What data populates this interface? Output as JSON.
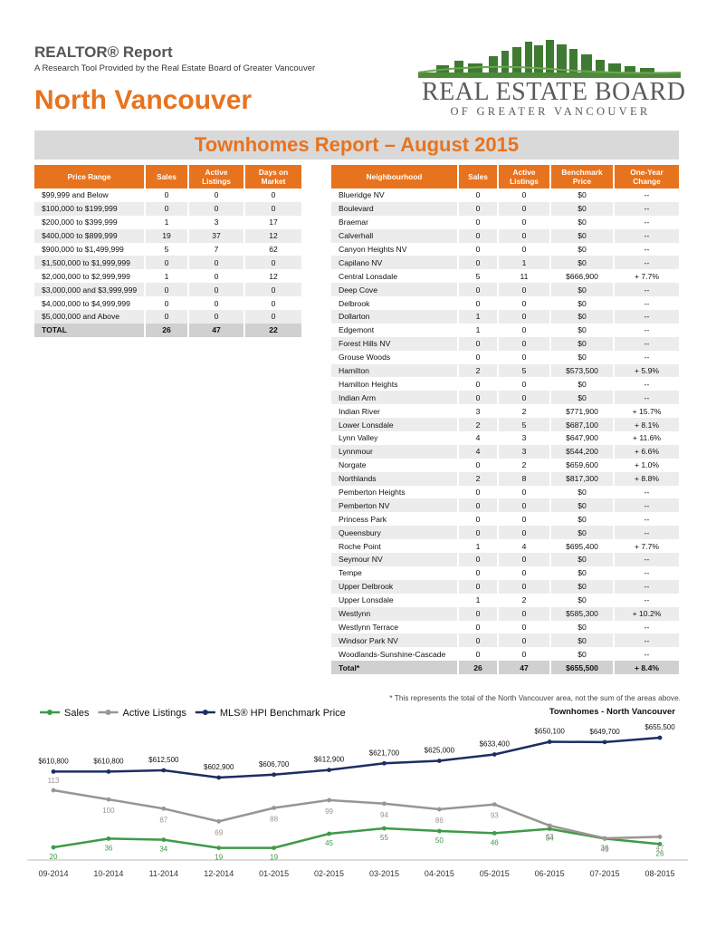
{
  "header": {
    "report_title": "REALTOR® Report",
    "subtitle": "A Research Tool Provided by the Real Estate Board of Greater Vancouver",
    "region": "North Vancouver",
    "logo_name": "REAL ESTATE BOARD",
    "logo_tagline": "OF GREATER VANCOUVER"
  },
  "banner": {
    "title": "Townhomes Report – August 2015"
  },
  "colors": {
    "orange": "#e8731e",
    "green": "#3f9a48",
    "gray": "#9a9590",
    "navy": "#1c2e63"
  },
  "price_table": {
    "headers": [
      "Price Range",
      "Sales",
      "Active Listings",
      "Days on Market"
    ],
    "rows": [
      [
        "$99,999 and Below",
        "0",
        "0",
        "0"
      ],
      [
        "$100,000 to $199,999",
        "0",
        "0",
        "0"
      ],
      [
        "$200,000 to $399,999",
        "1",
        "3",
        "17"
      ],
      [
        "$400,000 to $899,999",
        "19",
        "37",
        "12"
      ],
      [
        "$900,000 to $1,499,999",
        "5",
        "7",
        "62"
      ],
      [
        "$1,500,000 to $1,999,999",
        "0",
        "0",
        "0"
      ],
      [
        "$2,000,000 to $2,999,999",
        "1",
        "0",
        "12"
      ],
      [
        "$3,000,000 and $3,999,999",
        "0",
        "0",
        "0"
      ],
      [
        "$4,000,000 to $4,999,999",
        "0",
        "0",
        "0"
      ],
      [
        "$5,000,000 and Above",
        "0",
        "0",
        "0"
      ]
    ],
    "total": [
      "TOTAL",
      "26",
      "47",
      "22"
    ]
  },
  "neighbourhood_table": {
    "headers": [
      "Neighbourhood",
      "Sales",
      "Active Listings",
      "Benchmark Price",
      "One-Year Change"
    ],
    "rows": [
      [
        "Blueridge NV",
        "0",
        "0",
        "$0",
        "--"
      ],
      [
        "Boulevard",
        "0",
        "0",
        "$0",
        "--"
      ],
      [
        "Braemar",
        "0",
        "0",
        "$0",
        "--"
      ],
      [
        "Calverhall",
        "0",
        "0",
        "$0",
        "--"
      ],
      [
        "Canyon Heights NV",
        "0",
        "0",
        "$0",
        "--"
      ],
      [
        "Capilano NV",
        "0",
        "1",
        "$0",
        "--"
      ],
      [
        "Central Lonsdale",
        "5",
        "11",
        "$666,900",
        "+ 7.7%"
      ],
      [
        "Deep Cove",
        "0",
        "0",
        "$0",
        "--"
      ],
      [
        "Delbrook",
        "0",
        "0",
        "$0",
        "--"
      ],
      [
        "Dollarton",
        "1",
        "0",
        "$0",
        "--"
      ],
      [
        "Edgemont",
        "1",
        "0",
        "$0",
        "--"
      ],
      [
        "Forest Hills NV",
        "0",
        "0",
        "$0",
        "--"
      ],
      [
        "Grouse Woods",
        "0",
        "0",
        "$0",
        "--"
      ],
      [
        "Hamilton",
        "2",
        "5",
        "$573,500",
        "+ 5.9%"
      ],
      [
        "Hamilton Heights",
        "0",
        "0",
        "$0",
        "--"
      ],
      [
        "Indian Arm",
        "0",
        "0",
        "$0",
        "--"
      ],
      [
        "Indian River",
        "3",
        "2",
        "$771,900",
        "+ 15.7%"
      ],
      [
        "Lower Lonsdale",
        "2",
        "5",
        "$687,100",
        "+ 8.1%"
      ],
      [
        "Lynn Valley",
        "4",
        "3",
        "$647,900",
        "+ 11.6%"
      ],
      [
        "Lynnmour",
        "4",
        "3",
        "$544,200",
        "+ 6.6%"
      ],
      [
        "Norgate",
        "0",
        "2",
        "$659,600",
        "+ 1.0%"
      ],
      [
        "Northlands",
        "2",
        "8",
        "$817,300",
        "+ 8.8%"
      ],
      [
        "Pemberton Heights",
        "0",
        "0",
        "$0",
        "--"
      ],
      [
        "Pemberton NV",
        "0",
        "0",
        "$0",
        "--"
      ],
      [
        "Princess Park",
        "0",
        "0",
        "$0",
        "--"
      ],
      [
        "Queensbury",
        "0",
        "0",
        "$0",
        "--"
      ],
      [
        "Roche Point",
        "1",
        "4",
        "$695,400",
        "+ 7.7%"
      ],
      [
        "Seymour NV",
        "0",
        "0",
        "$0",
        "--"
      ],
      [
        "Tempe",
        "0",
        "0",
        "$0",
        "--"
      ],
      [
        "Upper Delbrook",
        "0",
        "0",
        "$0",
        "--"
      ],
      [
        "Upper Lonsdale",
        "1",
        "2",
        "$0",
        "--"
      ],
      [
        "Westlynn",
        "0",
        "0",
        "$585,300",
        "+ 10.2%"
      ],
      [
        "Westlynn Terrace",
        "0",
        "0",
        "$0",
        "--"
      ],
      [
        "Windsor Park NV",
        "0",
        "0",
        "$0",
        "--"
      ],
      [
        "Woodlands-Sunshine-Cascade",
        "0",
        "0",
        "$0",
        "--"
      ]
    ],
    "total": [
      "Total*",
      "26",
      "47",
      "$655,500",
      "+ 8.4%"
    ]
  },
  "footnote": "* This represents the total of the North Vancouver area, not the sum of the areas above.",
  "chart_data": {
    "type": "line",
    "title": "Townhomes - North Vancouver",
    "categories": [
      "09-2014",
      "10-2014",
      "11-2014",
      "12-2014",
      "01-2015",
      "02-2015",
      "03-2015",
      "04-2015",
      "05-2015",
      "06-2015",
      "07-2015",
      "08-2015"
    ],
    "series": [
      {
        "name": "Sales",
        "values": [
          20,
          36,
          34,
          19,
          19,
          45,
          55,
          50,
          46,
          54,
          36,
          26
        ],
        "labels": [
          "20",
          "36",
          "34",
          "19",
          "19",
          "45",
          "55",
          "50",
          "46",
          "54",
          "36",
          "26"
        ]
      },
      {
        "name": "Active Listings",
        "values": [
          113,
          100,
          87,
          69,
          88,
          99,
          94,
          86,
          93,
          63,
          45,
          47
        ],
        "labels": [
          "113",
          "100",
          "87",
          "69",
          "88",
          "99",
          "94",
          "86",
          "93",
          "63",
          "45",
          "47"
        ]
      },
      {
        "name": "MLS® HPI Benchmark Price",
        "values": [
          610800,
          610800,
          612500,
          602900,
          606700,
          612900,
          621700,
          625000,
          633400,
          650100,
          649700,
          655500
        ],
        "labels": [
          "$610,800",
          "$610,800",
          "$612,500",
          "$602,900",
          "$606,700",
          "$612,900",
          "$621,700",
          "$625,000",
          "$633,400",
          "$650,100",
          "$649,700",
          "$655,500"
        ]
      }
    ],
    "legend_position": "top-left",
    "grid": false
  }
}
